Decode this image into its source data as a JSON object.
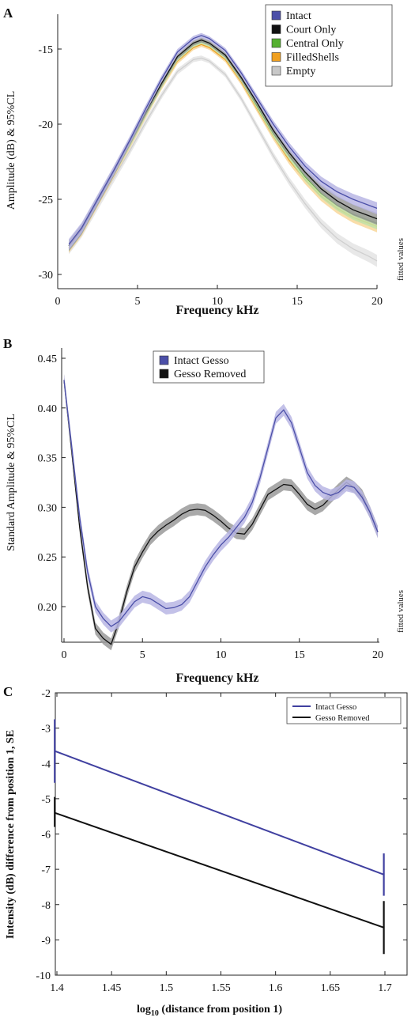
{
  "chart_data": [
    {
      "type": "line",
      "panel": "A",
      "xlabel": "Frequency kHz",
      "ylabel": "Amplitude (dB) & 95%CL",
      "side_note": "fitted values",
      "xlim": [
        0,
        20
      ],
      "ylim": [
        -30.5,
        -13.5
      ],
      "xticks": [
        "0",
        "5",
        "10",
        "15",
        "20"
      ],
      "yticks": [
        "-15",
        "-20",
        "-25",
        "-30"
      ],
      "legend_position": "top-right",
      "x": [
        0.7,
        1.5,
        2.5,
        3.5,
        4.5,
        5.5,
        6.5,
        7.5,
        8.5,
        9.0,
        9.5,
        10.5,
        11.5,
        12.5,
        13.5,
        14.5,
        15.5,
        16.5,
        17.5,
        18.5,
        19.5,
        20.0
      ],
      "series": [
        {
          "name": "Intact",
          "color": "#4b4fa8",
          "band": "#b9b6e4",
          "values": [
            -28.0,
            -26.9,
            -25.0,
            -23.1,
            -21.1,
            -19.0,
            -17.0,
            -15.2,
            -14.3,
            -14.1,
            -14.3,
            -15.1,
            -16.6,
            -18.3,
            -20.0,
            -21.5,
            -22.8,
            -23.8,
            -24.5,
            -25.0,
            -25.4,
            -25.6
          ]
        },
        {
          "name": "Court Only",
          "color": "#111111",
          "band": "#9a9a9a",
          "values": [
            -28.1,
            -27.0,
            -25.1,
            -23.2,
            -21.2,
            -19.2,
            -17.3,
            -15.5,
            -14.6,
            -14.4,
            -14.6,
            -15.4,
            -16.9,
            -18.6,
            -20.4,
            -21.9,
            -23.2,
            -24.3,
            -25.1,
            -25.7,
            -26.1,
            -26.3
          ]
        },
        {
          "name": "Central Only",
          "color": "#55b030",
          "band": "#bfe2a8",
          "values": [
            -28.1,
            -27.0,
            -25.1,
            -23.2,
            -21.3,
            -19.3,
            -17.4,
            -15.6,
            -14.7,
            -14.5,
            -14.7,
            -15.5,
            -17.0,
            -18.8,
            -20.6,
            -22.1,
            -23.5,
            -24.6,
            -25.4,
            -26.0,
            -26.4,
            -26.6
          ]
        },
        {
          "name": "FilledShells",
          "color": "#f0a020",
          "band": "#f8d79a",
          "values": [
            -28.2,
            -27.1,
            -25.2,
            -23.3,
            -21.4,
            -19.4,
            -17.5,
            -15.8,
            -14.9,
            -14.7,
            -14.9,
            -15.7,
            -17.2,
            -19.0,
            -20.8,
            -22.4,
            -23.7,
            -24.8,
            -25.6,
            -26.2,
            -26.6,
            -26.8
          ]
        },
        {
          "name": "Empty",
          "color": "#cfcfcf",
          "band": "#e4e4e4",
          "values": [
            -28.3,
            -27.2,
            -25.4,
            -23.6,
            -21.8,
            -19.9,
            -18.1,
            -16.5,
            -15.7,
            -15.6,
            -15.8,
            -16.7,
            -18.3,
            -20.2,
            -22.1,
            -23.8,
            -25.3,
            -26.6,
            -27.6,
            -28.3,
            -28.8,
            -29.1
          ]
        }
      ]
    },
    {
      "type": "line",
      "panel": "B",
      "xlabel": "Frequency kHz",
      "ylabel": "Standard Amplitude & 95%CL",
      "side_note": "fitted values",
      "xlim": [
        0,
        20
      ],
      "ylim": [
        0.165,
        0.455
      ],
      "xticks": [
        "0",
        "5",
        "10",
        "15",
        "20"
      ],
      "yticks": [
        "0.45",
        "0.40",
        "0.35",
        "0.30",
        "0.25",
        "0.20"
      ],
      "legend_position": "top-center",
      "x": [
        0,
        0.5,
        1,
        1.5,
        2,
        2.5,
        3,
        3.5,
        4,
        4.5,
        5,
        5.5,
        6,
        6.5,
        7,
        7.5,
        8,
        8.5,
        9,
        9.5,
        10,
        10.5,
        11,
        11.5,
        12,
        12.5,
        13,
        13.5,
        14,
        14.5,
        15,
        15.5,
        16,
        16.5,
        17,
        17.5,
        18,
        18.5,
        19,
        19.5,
        20
      ],
      "series": [
        {
          "name": "Intact Gesso",
          "color": "#4b4fa8",
          "band": "#b9b6e4",
          "values": [
            0.428,
            0.36,
            0.29,
            0.235,
            0.2,
            0.188,
            0.18,
            0.185,
            0.195,
            0.205,
            0.21,
            0.208,
            0.203,
            0.198,
            0.199,
            0.202,
            0.21,
            0.225,
            0.24,
            0.252,
            0.262,
            0.27,
            0.28,
            0.29,
            0.305,
            0.33,
            0.36,
            0.39,
            0.398,
            0.385,
            0.36,
            0.335,
            0.322,
            0.315,
            0.312,
            0.315,
            0.322,
            0.32,
            0.31,
            0.295,
            0.275
          ]
        },
        {
          "name": "Gesso Removed",
          "color": "#111111",
          "band": "#9a9a9a",
          "values": [
            0.428,
            0.355,
            0.28,
            0.22,
            0.178,
            0.168,
            0.162,
            0.185,
            0.215,
            0.24,
            0.255,
            0.268,
            0.276,
            0.282,
            0.287,
            0.293,
            0.297,
            0.298,
            0.297,
            0.292,
            0.286,
            0.279,
            0.274,
            0.273,
            0.283,
            0.298,
            0.313,
            0.318,
            0.323,
            0.322,
            0.313,
            0.303,
            0.298,
            0.302,
            0.31,
            0.318,
            0.325,
            0.32,
            0.312,
            0.295,
            0.275
          ]
        }
      ]
    },
    {
      "type": "line",
      "panel": "C",
      "xlabel": "log10 (distance from position 1)",
      "xlabel_main": "log",
      "xlabel_sub": "10",
      "xlabel_rest": " (distance from position 1)",
      "ylabel": "Intensity (dB) difference from position 1, SE",
      "xlim": [
        1.38,
        1.72
      ],
      "ylim": [
        -10,
        -2
      ],
      "xticks": [
        "1.4",
        "1.45",
        "1.5",
        "1.55",
        "1.6",
        "1.65",
        "1.7"
      ],
      "yticks": [
        "-2",
        "-3",
        "-4",
        "-5",
        "-6",
        "-7",
        "-8",
        "-9",
        "-10"
      ],
      "legend_position": "top-right",
      "x": [
        1.398,
        1.699
      ],
      "series": [
        {
          "name": "Intact Gesso",
          "color": "#4040a0",
          "values": [
            -3.65,
            -7.15
          ],
          "se_low": [
            -4.55,
            -7.75
          ],
          "se_high": [
            -2.75,
            -6.55
          ]
        },
        {
          "name": "Gesso Removed",
          "color": "#111111",
          "values": [
            -5.4,
            -8.65
          ],
          "se_low": [
            -5.8,
            -9.4
          ],
          "se_high": [
            -4.95,
            -7.9
          ]
        }
      ]
    }
  ]
}
